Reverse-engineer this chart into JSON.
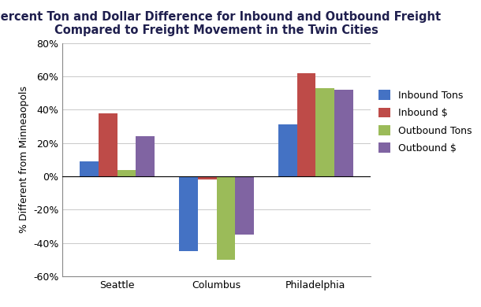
{
  "title_line1": "Percent Ton and Dollar Difference for Inbound and Outbound Freight",
  "title_line2": "Compared to Freight Movement in the Twin Cities",
  "cities": [
    "Seattle",
    "Columbus",
    "Philadelphia"
  ],
  "series": {
    "Inbound Tons": [
      9,
      -45,
      31
    ],
    "Inbound $": [
      38,
      -2,
      62
    ],
    "Outbound Tons": [
      4,
      -50,
      53
    ],
    "Outbound $": [
      24,
      -35,
      52
    ]
  },
  "series_order": [
    "Inbound Tons",
    "Inbound $",
    "Outbound Tons",
    "Outbound $"
  ],
  "colors": {
    "Inbound Tons": "#4472C4",
    "Inbound $": "#BE4B48",
    "Outbound Tons": "#9BBB59",
    "Outbound $": "#8064A2"
  },
  "ylabel": "% Different from Minneaopols",
  "ylim": [
    -60,
    80
  ],
  "yticks": [
    -60,
    -40,
    -20,
    0,
    20,
    40,
    60,
    80
  ],
  "ytick_labels": [
    "-60%",
    "-40%",
    "-20%",
    "0%",
    "20%",
    "40%",
    "60%",
    "80%"
  ],
  "bar_width": 0.19,
  "legend_fontsize": 9,
  "title_fontsize": 10.5,
  "ylabel_fontsize": 9,
  "xtick_fontsize": 9,
  "ytick_fontsize": 9,
  "background_color": "#ffffff"
}
